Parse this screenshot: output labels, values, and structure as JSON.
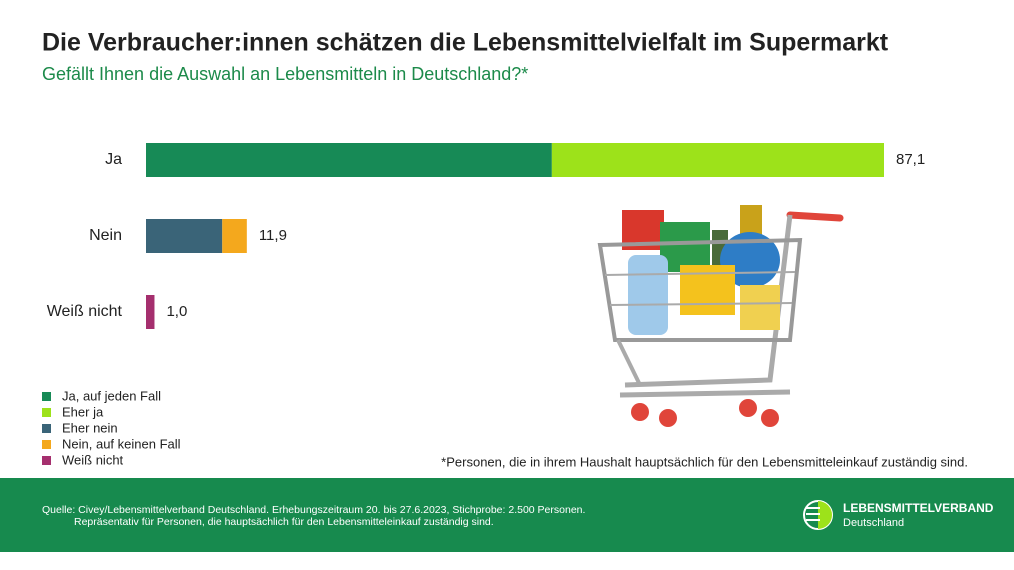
{
  "chart_data": {
    "type": "stacked_bar_horizontal",
    "title": "Die Verbraucher:innen schätzen die Lebensmittelvielfalt im Supermarkt",
    "subtitle": "Gefällt Ihnen die Auswahl an Lebensmitteln in Deutschland?*",
    "categories": [
      "Ja",
      "Nein",
      "Weiß nicht"
    ],
    "series": [
      {
        "name": "Ja, auf jeden Fall",
        "color": "#178a56",
        "values": [
          47.9,
          null,
          null
        ]
      },
      {
        "name": "Eher ja",
        "color": "#9de21a",
        "values": [
          39.2,
          null,
          null
        ]
      },
      {
        "name": "Eher nein",
        "color": "#3a6478",
        "values": [
          null,
          9.0,
          null
        ]
      },
      {
        "name": "Nein, auf keinen Fall",
        "color": "#f4a81d",
        "values": [
          null,
          2.9,
          null
        ]
      },
      {
        "name": "Weiß nicht",
        "color": "#a52f6e",
        "values": [
          null,
          null,
          1.0
        ]
      }
    ],
    "totals": [
      87.1,
      11.9,
      1.0
    ],
    "total_labels": [
      "87,1",
      "11,9",
      "1,0"
    ],
    "note": "*Personen, die in ihrem Haushalt hauptsächlich für den Lebensmitteleinkauf zuständig sind.",
    "source": [
      "Quelle: Civey/Lebensmittelverband Deutschland. Erhebungszeitraum 20. bis 27.6.2023, Stichprobe: 2.500 Personen.",
      "Repräsentativ für Personen, die hauptsächlich für den Lebensmitteleinkauf zuständig sind."
    ],
    "brand": [
      "LEBENSMITTELVERBAND",
      "Deutschland"
    ]
  }
}
